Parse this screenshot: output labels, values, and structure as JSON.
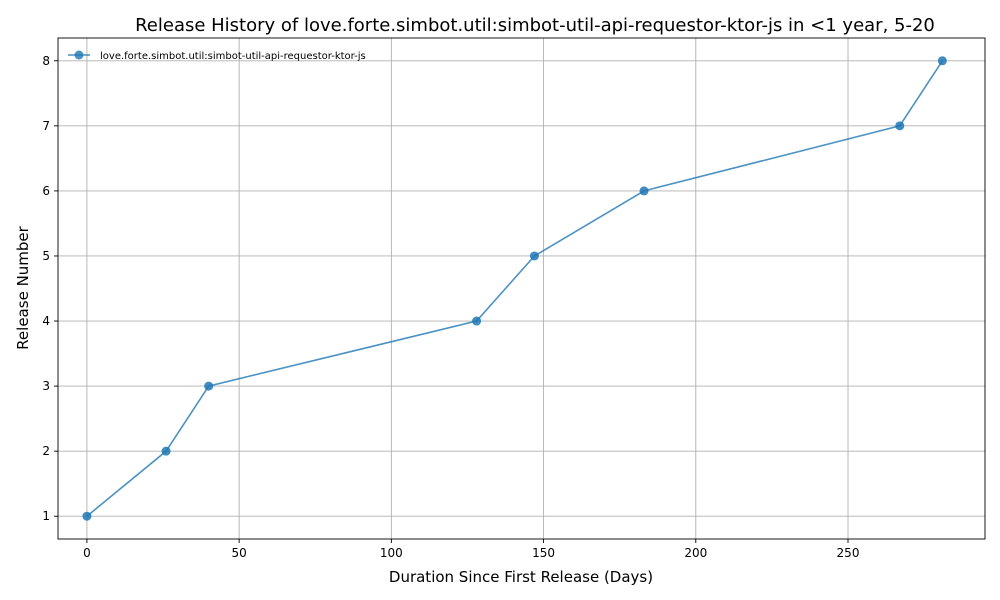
{
  "chart_data": {
    "type": "line",
    "title": "Release History of love.forte.simbot.util:simbot-util-api-requestor-ktor-js in <1 year, 5-20",
    "xlabel": "Duration Since First Release (Days)",
    "ylabel": "Release Number",
    "xlim": [
      -9.5,
      295
    ],
    "ylim": [
      0.65,
      8.35
    ],
    "xticks": [
      0,
      50,
      100,
      150,
      200,
      250
    ],
    "yticks": [
      1,
      2,
      3,
      4,
      5,
      6,
      7,
      8
    ],
    "grid": true,
    "legend_position": "top-left",
    "series": [
      {
        "name": "love.forte.simbot.util:simbot-util-api-requestor-ktor-js",
        "color": "#1f77b4",
        "marker": "circle",
        "x": [
          0,
          26,
          40,
          128,
          147,
          183,
          267,
          281
        ],
        "y": [
          1,
          2,
          3,
          4,
          5,
          6,
          7,
          8
        ]
      }
    ]
  }
}
